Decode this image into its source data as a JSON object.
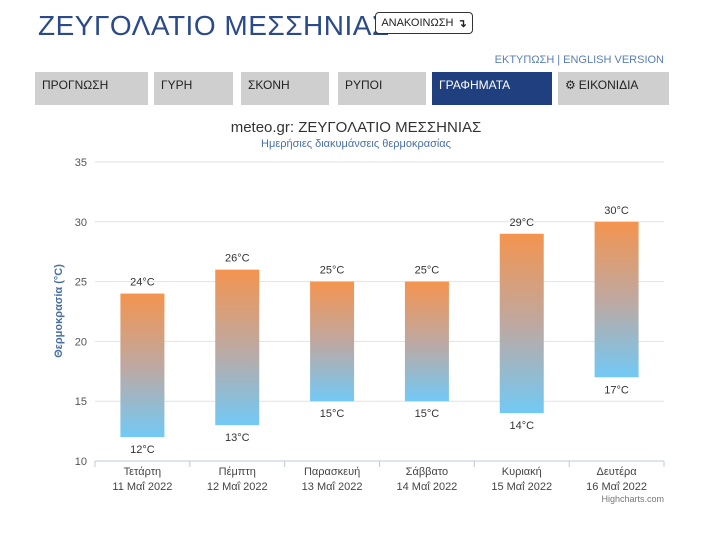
{
  "header": {
    "title": "ΖΕΥΓΟΛΑΤΙΟ ΜΕΣΣΗΝΙΑΣ",
    "announce_label": "ΑΝΑΚΟΙΝΩΣΗ",
    "announce_icon": "arrow-down-curve-icon",
    "print_label": "ΕΚΤΥΠΩΣΗ",
    "separator": "|",
    "english_label": "ENGLISH VERSION"
  },
  "tabs": [
    {
      "label": "ΠΡΟΓΝΩΣΗ",
      "active": false
    },
    {
      "label": "ΓΥΡΗ",
      "active": false
    },
    {
      "label": "ΣΚΟΝΗ",
      "active": false
    },
    {
      "label": "ΡΥΠΟΙ",
      "active": false
    },
    {
      "label": "ΓΡΑΦΗΜΑΤΑ",
      "active": true
    },
    {
      "label": "ΕΙΚΟΝΙΔΙΑ",
      "active": false,
      "icon": "gear-icon"
    }
  ],
  "colors": {
    "brand": "#2b4a8a",
    "active_tab": "#1f3f7e",
    "bar_top": "#f4944f",
    "bar_bottom": "#72c9f5"
  },
  "chart_data": {
    "type": "bar",
    "subtype": "columnrange",
    "title": "meteo.gr: ΖΕΥΓΟΛΑΤΙΟ ΜΕΣΣΗΝΙΑΣ",
    "subtitle": "Ημερήσιες διακυμάνσεις θερμοκρασίας",
    "ylabel": "Θερμοκρασία (°C)",
    "ylim": [
      10,
      35
    ],
    "yticks": [
      "10",
      "15",
      "20",
      "25",
      "30",
      "35"
    ],
    "grid": true,
    "unit": "°C",
    "categories": [
      {
        "day": "Τετάρτη",
        "date": "11 Μαΐ 2022"
      },
      {
        "day": "Πέμπτη",
        "date": "12 Μαΐ 2022"
      },
      {
        "day": "Παρασκευή",
        "date": "13 Μαΐ 2022"
      },
      {
        "day": "Σάββατο",
        "date": "14 Μαΐ 2022"
      },
      {
        "day": "Κυριακή",
        "date": "15 Μαΐ 2022"
      },
      {
        "day": "Δευτέρα",
        "date": "16 Μαΐ 2022"
      }
    ],
    "low": [
      12,
      13,
      15,
      15,
      14,
      17
    ],
    "high": [
      24,
      26,
      25,
      25,
      29,
      30
    ],
    "credits": "Highcharts.com"
  }
}
